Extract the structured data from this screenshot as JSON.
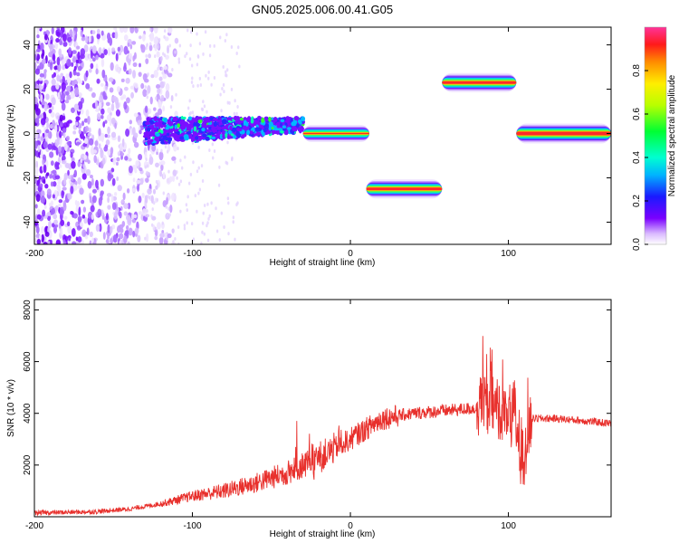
{
  "title": "GN05.2025.006.00.41.G05",
  "chart_data": [
    {
      "type": "heatmap",
      "xlabel": "Height of straight line (km)",
      "ylabel": "Frequency (Hz)",
      "xlim": [
        -200,
        165
      ],
      "ylim": [
        -50,
        48
      ],
      "xticks": [
        -200,
        -100,
        0,
        100
      ],
      "yticks": [
        -40,
        -20,
        0,
        20,
        40
      ],
      "colorbar": {
        "label": "Normalized spectral amplitude",
        "range": [
          0,
          1
        ],
        "ticks": [
          "0.0",
          "0.2",
          "0.4",
          "0.6",
          "0.8"
        ]
      },
      "features": [
        {
          "name": "noise",
          "x": [
            -200,
            -115
          ],
          "y": [
            -50,
            48
          ]
        },
        {
          "name": "scatter-band",
          "x": [
            -130,
            -30
          ],
          "y": [
            -5,
            10
          ]
        },
        {
          "name": "line-1",
          "x": [
            -30,
            12
          ],
          "y": 0
        },
        {
          "name": "line-2",
          "x": [
            10,
            58
          ],
          "y": -25
        },
        {
          "name": "line-3",
          "x": [
            58,
            105
          ],
          "y": 23
        },
        {
          "name": "line-4",
          "x": [
            105,
            165
          ],
          "y": 0
        }
      ]
    },
    {
      "type": "line",
      "xlabel": "Height of straight line (km)",
      "ylabel": "SNR (10 * v/v)",
      "xlim": [
        -200,
        165
      ],
      "ylim": [
        0,
        8400
      ],
      "xticks": [
        -200,
        -100,
        0,
        100
      ],
      "yticks": [
        2000,
        4000,
        6000,
        8000
      ],
      "series": [
        {
          "color": "#e8302c",
          "x": [
            -200,
            -180,
            -160,
            -140,
            -120,
            -100,
            -80,
            -60,
            -40,
            -20,
            0,
            20,
            40,
            60,
            80,
            90,
            100,
            105,
            110,
            115,
            130,
            150,
            165
          ],
          "y": [
            150,
            170,
            200,
            300,
            500,
            800,
            1000,
            1300,
            1700,
            2300,
            3000,
            3800,
            4000,
            4100,
            4200,
            4300,
            4000,
            3500,
            2200,
            3800,
            3800,
            3700,
            3600
          ]
        }
      ]
    }
  ]
}
